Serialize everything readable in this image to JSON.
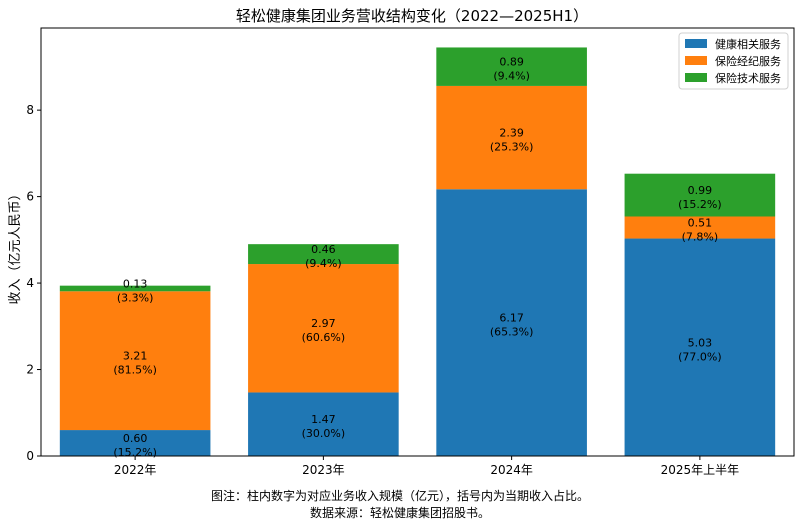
{
  "chart_data": {
    "type": "bar",
    "stacked": true,
    "title": "轻松健康集团业务营收结构变化（2022—2025H1）",
    "xlabel": "",
    "ylabel": "收入（亿元人民币）",
    "ylim": [
      0,
      9.9
    ],
    "yticks": [
      0,
      2,
      4,
      6,
      8
    ],
    "grid": false,
    "legend_position": "top-right",
    "categories": [
      "2022年",
      "2023年",
      "2024年",
      "2025年上半年"
    ],
    "series": [
      {
        "name": "健康相关服务",
        "color": "#1f77b4",
        "values": [
          0.6,
          1.47,
          6.17,
          5.03
        ],
        "labels": [
          "0.60",
          "1.47",
          "6.17",
          "5.03"
        ],
        "shares": [
          "(15.2%)",
          "(30.0%)",
          "(65.3%)",
          "(77.0%)"
        ]
      },
      {
        "name": "保险经纪服务",
        "color": "#ff7f0e",
        "values": [
          3.21,
          2.97,
          2.39,
          0.51
        ],
        "labels": [
          "3.21",
          "2.97",
          "2.39",
          "0.51"
        ],
        "shares": [
          "(81.5%)",
          "(60.6%)",
          "(25.3%)",
          "(7.8%)"
        ]
      },
      {
        "name": "保险技术服务",
        "color": "#2ca02c",
        "values": [
          0.13,
          0.46,
          0.89,
          0.99
        ],
        "labels": [
          "0.13",
          "0.46",
          "0.89",
          "0.99"
        ],
        "shares": [
          "(3.3%)",
          "(9.4%)",
          "(9.4%)",
          "(15.2%)"
        ]
      }
    ]
  },
  "notes": {
    "caption": "图注：柱内数字为对应业务收入规模（亿元），括号内为当期收入占比。",
    "source": "数据来源：轻松健康集团招股书。"
  }
}
